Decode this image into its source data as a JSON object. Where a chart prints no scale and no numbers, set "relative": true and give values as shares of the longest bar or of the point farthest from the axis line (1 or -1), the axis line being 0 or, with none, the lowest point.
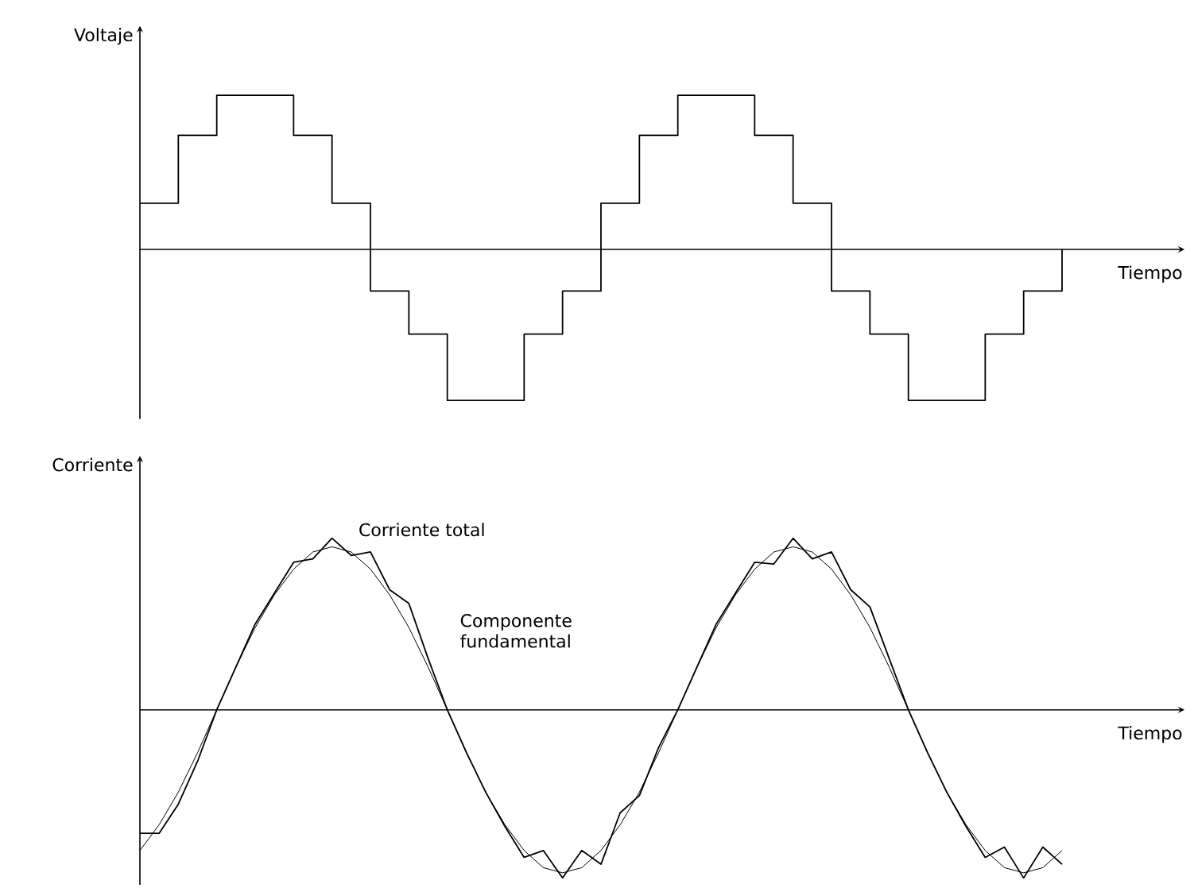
{
  "chart_data": [
    {
      "type": "step",
      "ylabel": "Voltaje",
      "xlabel": "Tiempo",
      "relative": true,
      "color": "#000000",
      "categories": [
        null,
        null,
        null,
        null,
        null,
        null,
        null,
        null,
        null,
        null,
        null,
        null,
        null,
        null,
        null,
        null,
        null,
        null,
        null,
        null,
        null,
        null,
        null,
        null,
        null
      ],
      "values": [
        0.3,
        0.74,
        1,
        1,
        0.74,
        0.3,
        -0.27,
        -0.55,
        -0.98,
        -0.98,
        -0.55,
        -0.27,
        0.3,
        0.74,
        1,
        1,
        0.74,
        0.3,
        -0.27,
        -0.55,
        -0.98,
        -0.98,
        -0.55,
        -0.27,
        0
      ]
    },
    {
      "type": "line",
      "ylabel": "Corriente",
      "xlabel": "Tiempo",
      "relative": true,
      "categories": [
        null,
        null,
        null,
        null,
        null,
        null,
        null,
        null,
        null,
        null,
        null,
        null,
        null,
        null,
        null,
        null,
        null,
        null,
        null,
        null,
        null,
        null,
        null,
        null,
        null,
        null,
        null,
        null,
        null,
        null,
        null,
        null,
        null,
        null,
        null,
        null,
        null,
        null,
        null,
        null,
        null,
        null,
        null,
        null,
        null,
        null,
        null,
        null,
        null
      ],
      "series": [
        {
          "name": "Corriente total",
          "color": "#000000",
          "values": [
            -0.72,
            -0.72,
            -0.55,
            -0.3,
            0,
            0.25,
            0.5,
            0.68,
            0.86,
            0.88,
            1.0,
            0.9,
            0.92,
            0.7,
            0.62,
            0.3,
            0,
            -0.25,
            -0.48,
            -0.68,
            -0.86,
            -0.82,
            -0.98,
            -0.82,
            -0.9,
            -0.6,
            -0.5,
            -0.22,
            0,
            0.25,
            0.5,
            0.68,
            0.86,
            0.85,
            1.0,
            0.88,
            0.92,
            0.7,
            0.6,
            0.3,
            0,
            -0.25,
            -0.48,
            -0.68,
            -0.86,
            -0.8,
            -0.98,
            -0.8,
            -0.9
          ]
        },
        {
          "name": "Componente fundamental",
          "color": "#000000",
          "values": [
            -0.82,
            -0.67,
            -0.48,
            -0.25,
            0,
            0.25,
            0.48,
            0.67,
            0.82,
            0.92,
            0.95,
            0.92,
            0.82,
            0.67,
            0.48,
            0.25,
            0,
            -0.25,
            -0.48,
            -0.67,
            -0.82,
            -0.92,
            -0.95,
            -0.92,
            -0.82,
            -0.67,
            -0.48,
            -0.25,
            0,
            0.25,
            0.48,
            0.67,
            0.82,
            0.92,
            0.95,
            0.92,
            0.82,
            0.67,
            0.48,
            0.25,
            0,
            -0.25,
            -0.48,
            -0.67,
            -0.82,
            -0.92,
            -0.95,
            -0.92,
            -0.82
          ]
        }
      ]
    }
  ]
}
